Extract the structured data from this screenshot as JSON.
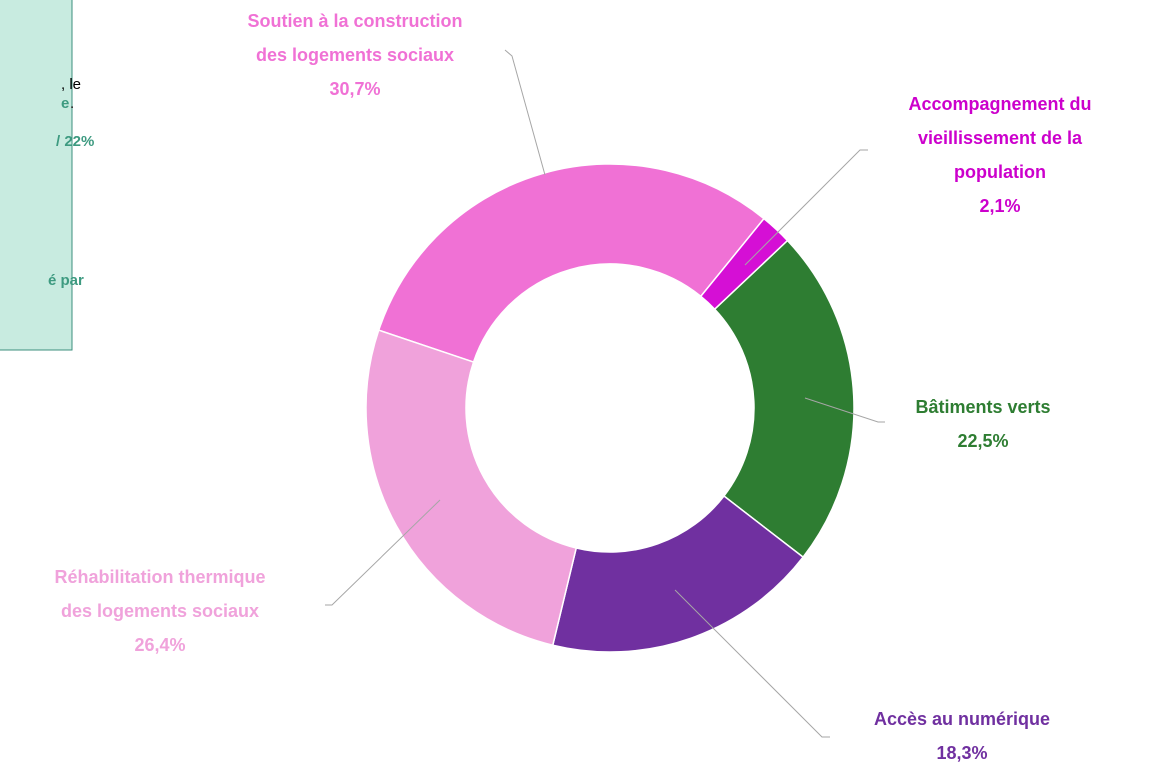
{
  "chart_data": {
    "type": "donut",
    "categories": [
      [
        "Soutien à la construction",
        "des logements sociaux"
      ],
      [
        "Accompagnement du",
        "vieillissement de la",
        "population"
      ],
      [
        "Bâtiments verts"
      ],
      [
        "Accès au numérique"
      ],
      [
        "Réhabilitation thermique",
        "des logements sociaux"
      ]
    ],
    "values": [
      30.7,
      2.1,
      22.5,
      18.3,
      26.4
    ],
    "value_labels": [
      "30,7%",
      "2,1%",
      "22,5%",
      "18,3%",
      "26,4%"
    ],
    "colors": [
      "#f071d5",
      "#d50fd5",
      "#2e7d32",
      "#7030a0",
      "#f0a2db"
    ],
    "label_colors": [
      "#f071d5",
      "#cc00cc",
      "#2e7d32",
      "#7030a0",
      "#f0a2db"
    ]
  },
  "side_note": {
    "fragments": [
      ", le",
      "e",
      ".",
      "/ 22%",
      "é par"
    ]
  }
}
